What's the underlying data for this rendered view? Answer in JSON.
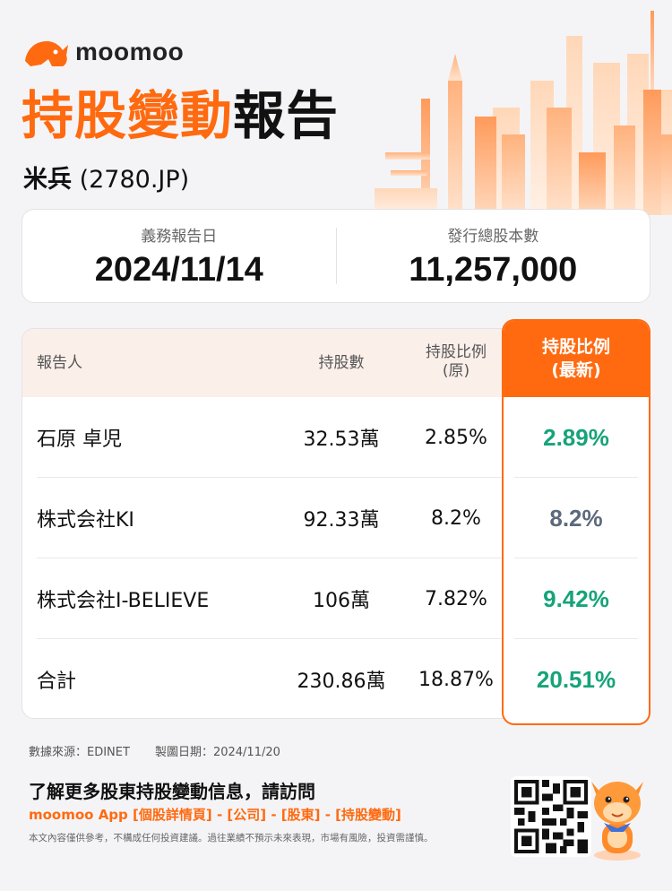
{
  "brand": {
    "name": "moomoo",
    "accent": "#ff6a10",
    "logo_icon": "bull-head-icon"
  },
  "header": {
    "title_orange": "持股變動",
    "title_black": "報告",
    "company_name": "米兵",
    "ticker": "(2780.JP)"
  },
  "summary": {
    "report_date_label": "義務報告日",
    "report_date": "2024/11/14",
    "shares_issued_label": "發行總股本數",
    "shares_issued": "11,257,000"
  },
  "table": {
    "headers": {
      "reporter": "報告人",
      "shares": "持股數",
      "ratio_old_line1": "持股比例",
      "ratio_old_line2": "(原)",
      "ratio_new_line1": "持股比例",
      "ratio_new_line2": "(最新)"
    },
    "rows": [
      {
        "reporter": "石原 卓児",
        "shares": "32.53萬",
        "ratio_old": "2.85%",
        "ratio_new": "2.89%",
        "trend": "up",
        "color": "#16a37a"
      },
      {
        "reporter": "株式会社KI",
        "shares": "92.33萬",
        "ratio_old": "8.2%",
        "ratio_new": "8.2%",
        "trend": "flat",
        "color": "#5d6a7d"
      },
      {
        "reporter": "株式会社I-BELIEVE",
        "shares": "106萬",
        "ratio_old": "7.82%",
        "ratio_new": "9.42%",
        "trend": "up",
        "color": "#16a37a"
      },
      {
        "reporter": "合計",
        "shares": "230.86萬",
        "ratio_old": "18.87%",
        "ratio_new": "20.51%",
        "trend": "up",
        "color": "#16a37a"
      }
    ]
  },
  "footer": {
    "source": "數據來源：EDINET",
    "made_date": "製圖日期：2024/11/20",
    "cta": "了解更多股東持股變動信息，請訪問",
    "cta_path": "moomoo App [個股詳情頁] - [公司] - [股東] - [持股變動]",
    "disclaimer": "本文內容僅供參考，不構成任何投資建議。過往業績不預示未來表現，市場有風險，投資需謹慎。",
    "qr_icon": "qr-code-icon",
    "mascot_icon": "moomoo-mascot-icon"
  }
}
